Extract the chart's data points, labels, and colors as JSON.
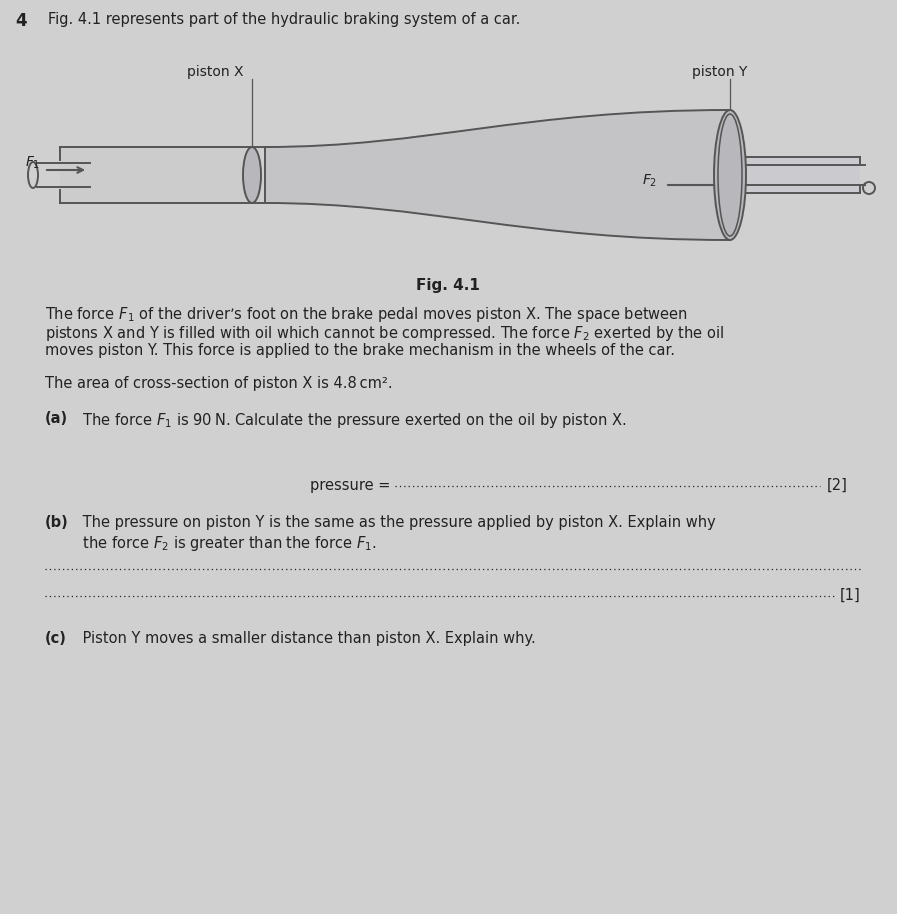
{
  "background_color": "#d0d0d0",
  "page_number": "4",
  "title_text": "Fig. 4.1 represents part of the hydraulic braking system of a car.",
  "fig_label": "Fig. 4.1",
  "piston_x_label": "piston X",
  "piston_y_label": "piston Y",
  "f1_label": "$F_1$",
  "f2_label": "$F_2$",
  "desc_line1": "The force $F_1$ of the driver’s foot on the brake pedal moves piston X. The space between",
  "desc_line2": "pistons X and Y is filled with oil which cannot be compressed. The force $F_2$ exerted by the oil",
  "desc_line3": "moves piston Y. This force is applied to the brake mechanism in the wheels of the car.",
  "area_text": "The area of cross-section of piston X is 4.8 cm².",
  "part_a_bold": "(a)",
  "part_a_text": " The force $F_1$ is 90 N. Calculate the pressure exerted on the oil by piston X.",
  "part_b_bold": "(b)",
  "part_b_line1": " The pressure on piston Y is the same as the pressure applied by piston X. Explain why",
  "part_b_line2": " the force $F_2$ is greater than the force $F_1$.",
  "part_c_bold": "(c)",
  "part_c_text": " Piston Y moves a smaller distance than piston X. Explain why.",
  "text_color": "#222222",
  "diagram_stroke": "#555555",
  "diagram_fill_large": "#c0c0c8",
  "diagram_fill_small": "#d4d4d8",
  "lw_main": 1.4
}
